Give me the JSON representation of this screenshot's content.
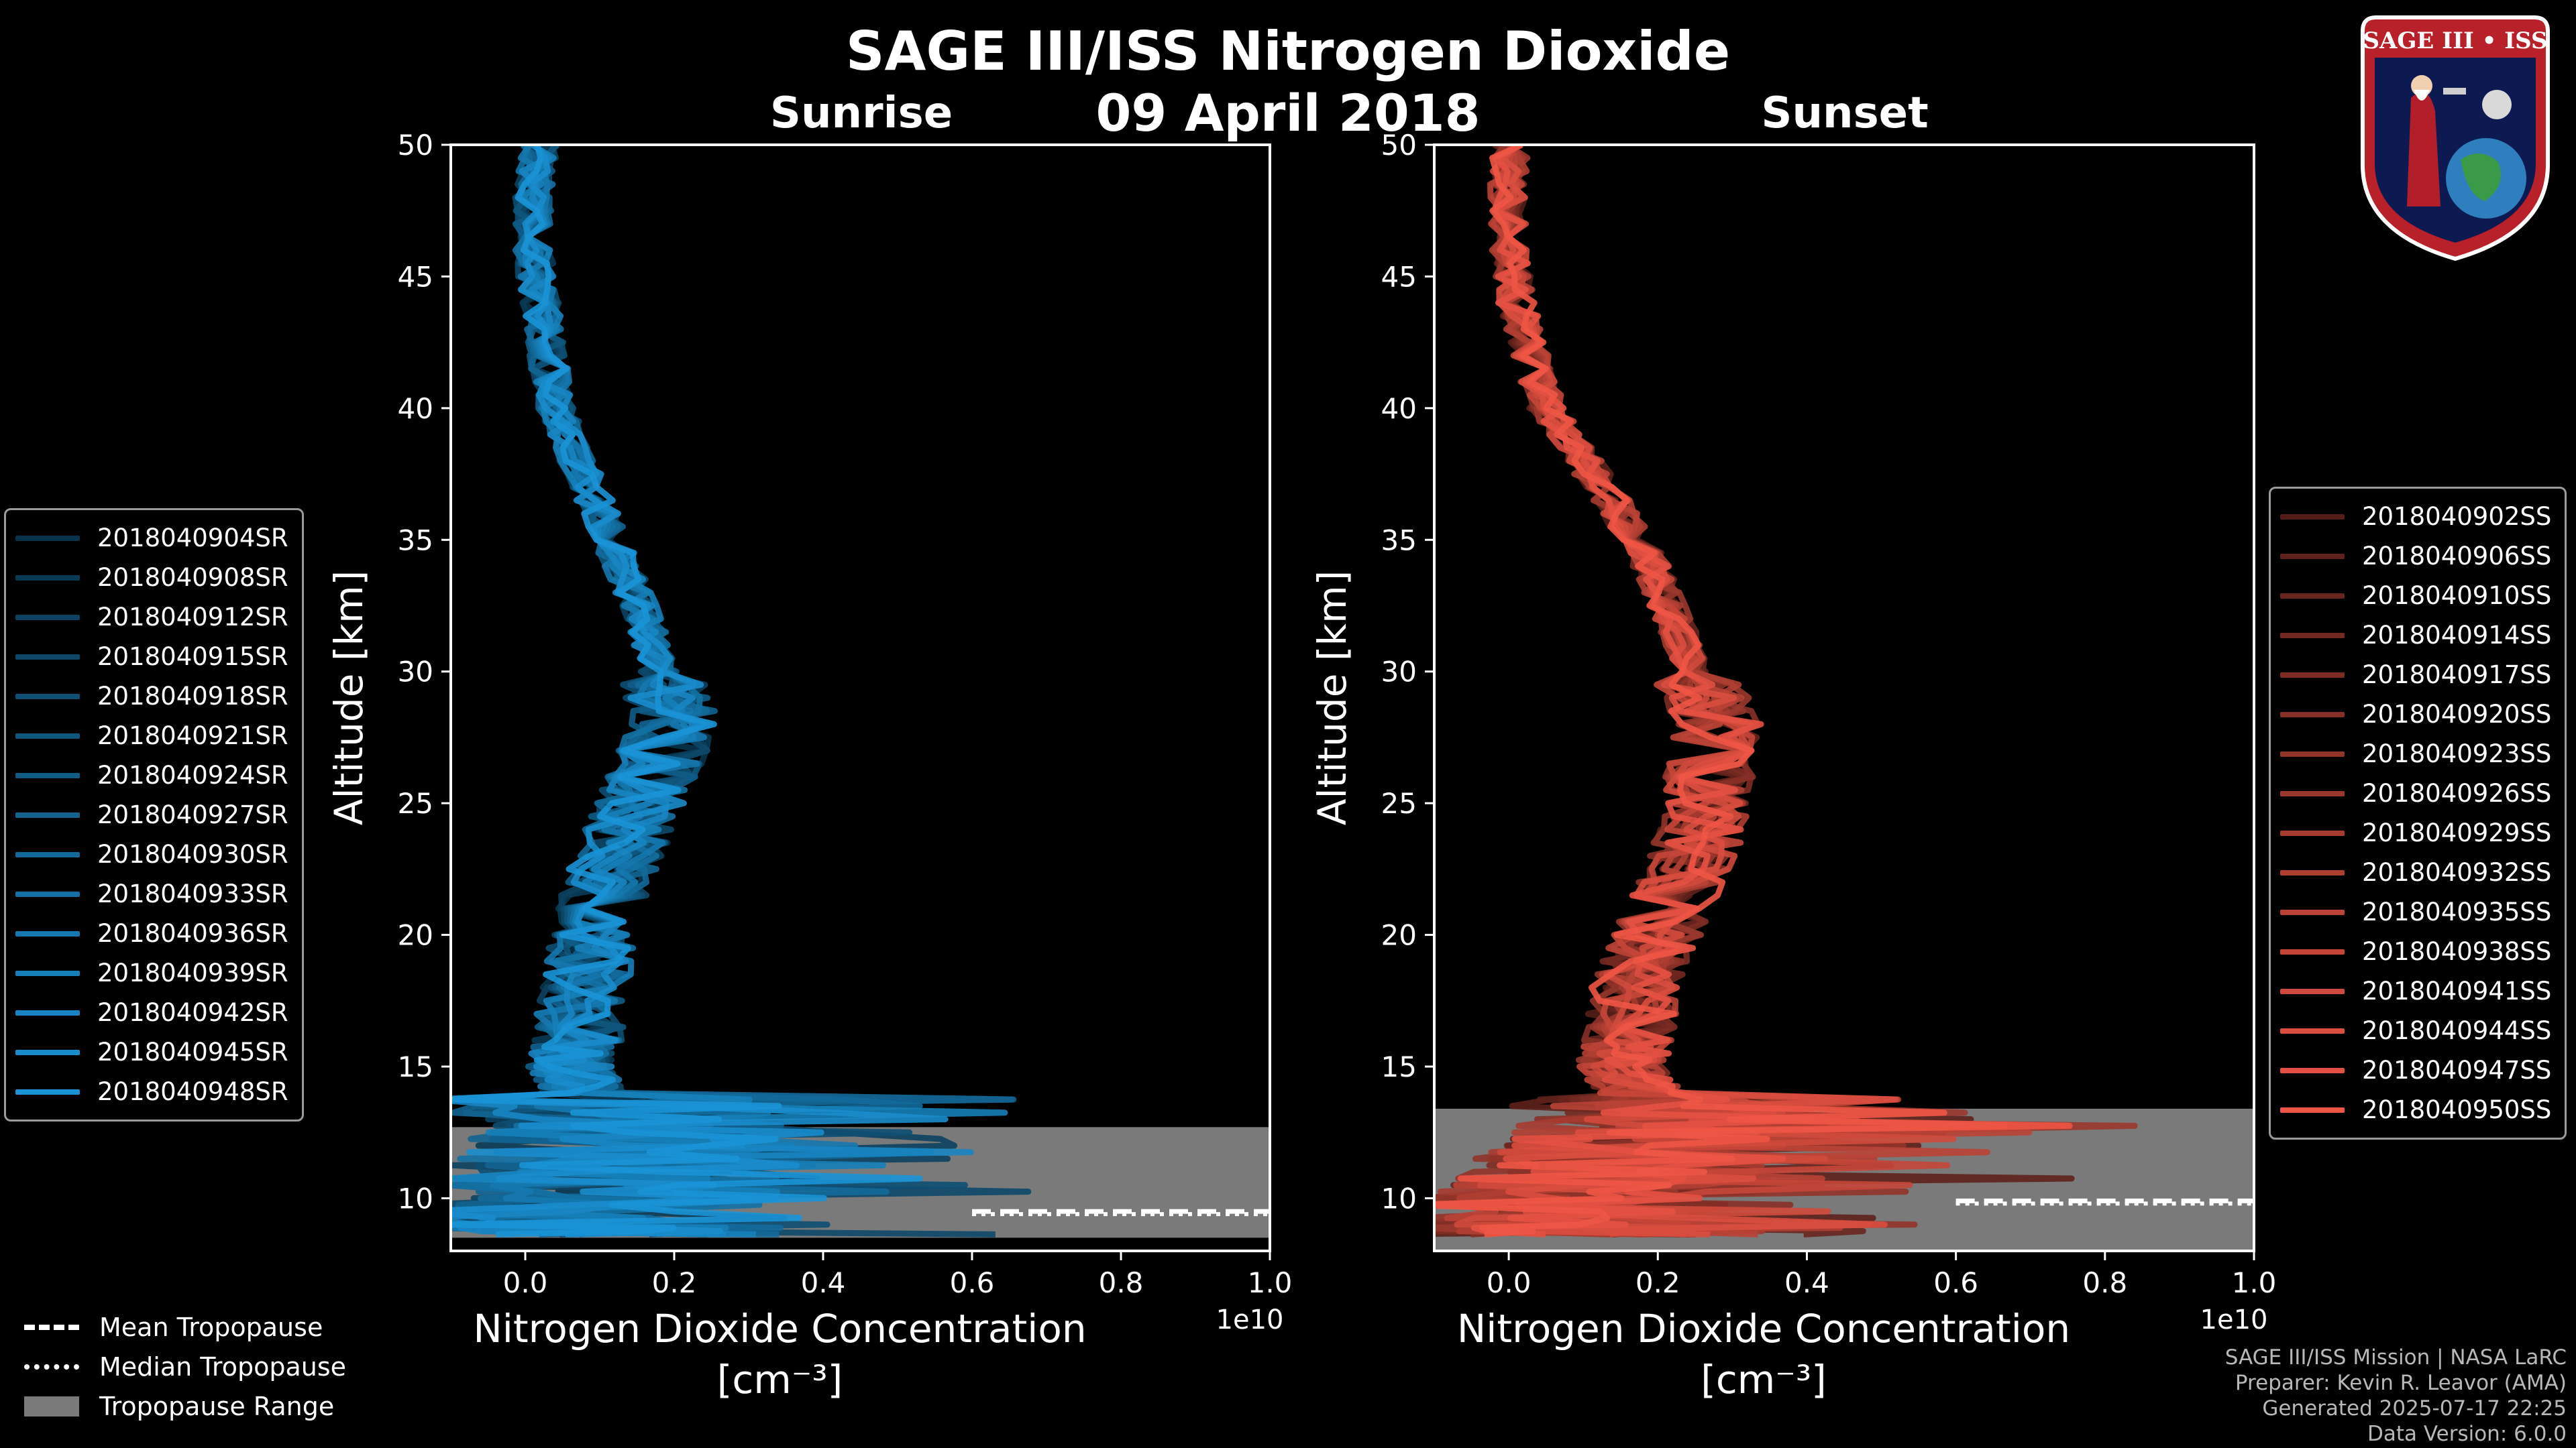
{
  "title": "SAGE III/ISS Nitrogen Dioxide",
  "date": "09 April 2018",
  "logo_text": "SAGE III • ISS",
  "chart_data": [
    {
      "type": "line",
      "title": "Sunrise",
      "xlabel": "Nitrogen Dioxide Concentration",
      "xunits": "[cm⁻³]",
      "xscale_label": "1e10",
      "ylabel": "Altitude [km]",
      "xlim": [
        -0.1,
        1.0
      ],
      "ylim": [
        8,
        50
      ],
      "xticks": [
        "0.0",
        "0.2",
        "0.4",
        "0.6",
        "0.8",
        "1.0"
      ],
      "yticks": [
        "10",
        "15",
        "20",
        "25",
        "30",
        "35",
        "40",
        "45",
        "50"
      ],
      "color": "#1a93d6",
      "legend_position": "left",
      "mean_tropopause_km": 9.5,
      "median_tropopause_km": 9.5,
      "tropopause_range_km": [
        8.5,
        12.7
      ],
      "profile": {
        "altitude_km": [
          50,
          48,
          46,
          44,
          42,
          40,
          38,
          36,
          34,
          32,
          30,
          28,
          26,
          24,
          22,
          20,
          18,
          16,
          15,
          14,
          13,
          12,
          11,
          10,
          9,
          8.5
        ],
        "no2": [
          0.02,
          0.01,
          0.01,
          0.02,
          0.03,
          0.04,
          0.07,
          0.1,
          0.13,
          0.16,
          0.18,
          0.2,
          0.17,
          0.14,
          0.11,
          0.09,
          0.08,
          0.07,
          0.06,
          0.08,
          0.12,
          0.15,
          0.1,
          0.07,
          0.05,
          0.05
        ]
      },
      "series": [
        {
          "name": "2018040904SR"
        },
        {
          "name": "2018040908SR"
        },
        {
          "name": "2018040912SR"
        },
        {
          "name": "2018040915SR"
        },
        {
          "name": "2018040918SR"
        },
        {
          "name": "2018040921SR"
        },
        {
          "name": "2018040924SR"
        },
        {
          "name": "2018040927SR"
        },
        {
          "name": "2018040930SR"
        },
        {
          "name": "2018040933SR"
        },
        {
          "name": "2018040936SR"
        },
        {
          "name": "2018040939SR"
        },
        {
          "name": "2018040942SR"
        },
        {
          "name": "2018040945SR"
        },
        {
          "name": "2018040948SR"
        }
      ]
    },
    {
      "type": "line",
      "title": "Sunset",
      "xlabel": "Nitrogen Dioxide Concentration",
      "xunits": "[cm⁻³]",
      "xscale_label": "1e10",
      "ylabel": "Altitude [km]",
      "xlim": [
        -0.1,
        1.0
      ],
      "ylim": [
        8,
        50
      ],
      "xticks": [
        "0.0",
        "0.2",
        "0.4",
        "0.6",
        "0.8",
        "1.0"
      ],
      "yticks": [
        "10",
        "15",
        "20",
        "25",
        "30",
        "35",
        "40",
        "45",
        "50"
      ],
      "color": "#ee5545",
      "legend_position": "right",
      "mean_tropopause_km": 9.9,
      "median_tropopause_km": 9.9,
      "tropopause_range_km": [
        8.0,
        13.4
      ],
      "profile": {
        "altitude_km": [
          50,
          48,
          46,
          44,
          42,
          40,
          38,
          36,
          34,
          32,
          30,
          28,
          26,
          24,
          22,
          20,
          18,
          16,
          15,
          14,
          13,
          12,
          11,
          10,
          9,
          8.5
        ],
        "no2": [
          0.0,
          0.0,
          0.0,
          0.01,
          0.03,
          0.05,
          0.1,
          0.15,
          0.19,
          0.22,
          0.25,
          0.28,
          0.27,
          0.26,
          0.23,
          0.2,
          0.17,
          0.16,
          0.15,
          0.18,
          0.22,
          0.2,
          0.12,
          0.08,
          0.05,
          0.05
        ]
      },
      "series": [
        {
          "name": "2018040902SS"
        },
        {
          "name": "2018040906SS"
        },
        {
          "name": "2018040910SS"
        },
        {
          "name": "2018040914SS"
        },
        {
          "name": "2018040917SS"
        },
        {
          "name": "2018040920SS"
        },
        {
          "name": "2018040923SS"
        },
        {
          "name": "2018040926SS"
        },
        {
          "name": "2018040929SS"
        },
        {
          "name": "2018040932SS"
        },
        {
          "name": "2018040935SS"
        },
        {
          "name": "2018040938SS"
        },
        {
          "name": "2018040941SS"
        },
        {
          "name": "2018040944SS"
        },
        {
          "name": "2018040947SS"
        },
        {
          "name": "2018040950SS"
        }
      ]
    }
  ],
  "bottom_legend": [
    {
      "label": "Mean Tropopause",
      "style": "dashed"
    },
    {
      "label": "Median Tropopause",
      "style": "dotted"
    },
    {
      "label": "Tropopause Range",
      "style": "patch"
    }
  ],
  "credits": [
    "SAGE III/ISS Mission | NASA LaRC",
    "Preparer: Kevin R. Leavor (AMA)",
    "Generated 2025-07-17 22:25",
    "Data Version: 6.0.0"
  ]
}
